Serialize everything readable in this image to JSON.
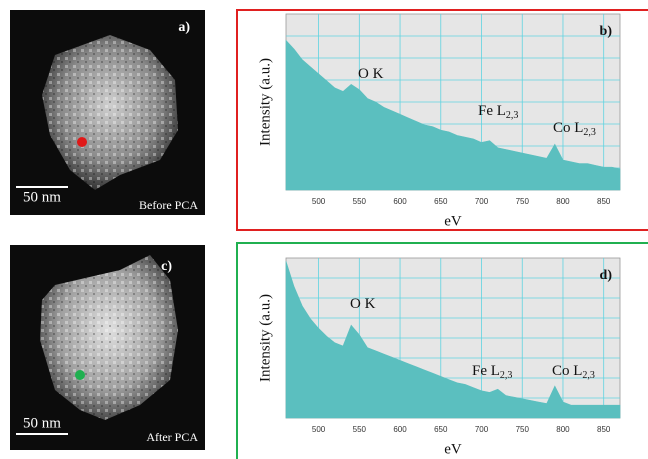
{
  "chart_data": [
    {
      "type": "area",
      "label": "b)",
      "xlabel": "eV",
      "ylabel": "Intensity (a.u.)",
      "color": "#5bbfbf",
      "frame_color": "#e02020",
      "annotations": [
        {
          "text": "O K"
        },
        {
          "text": "Fe L",
          "sub": "2,3"
        },
        {
          "text": "Co L",
          "sub": "2,3"
        }
      ],
      "x": [
        460,
        470,
        480,
        490,
        500,
        510,
        520,
        530,
        540,
        550,
        560,
        570,
        580,
        590,
        600,
        610,
        620,
        630,
        640,
        650,
        660,
        670,
        680,
        690,
        700,
        710,
        720,
        730,
        740,
        750,
        760,
        770,
        780,
        790,
        800,
        810,
        820,
        830,
        840,
        850,
        860,
        870
      ],
      "values": [
        85,
        80,
        74,
        70,
        66,
        62,
        58,
        56,
        60,
        57,
        52,
        50,
        47,
        45,
        43,
        41,
        39,
        37,
        36,
        34,
        33,
        31,
        30,
        29,
        27,
        28,
        24,
        23,
        22,
        21,
        20,
        19,
        18,
        26,
        17,
        16,
        15,
        15,
        14,
        13,
        13,
        12
      ],
      "xlim": [
        460,
        870
      ],
      "ylim": [
        0,
        100
      ],
      "xticks": [
        500,
        550,
        600,
        650,
        700,
        750,
        800,
        850
      ],
      "grid": true
    },
    {
      "type": "area",
      "label": "d)",
      "xlabel": "eV",
      "ylabel": "Intensity (a.u.)",
      "color": "#5bbfbf",
      "frame_color": "#20b050",
      "annotations": [
        {
          "text": "O K"
        },
        {
          "text": "Fe L",
          "sub": "2,3"
        },
        {
          "text": "Co L",
          "sub": "2,3"
        }
      ],
      "x": [
        460,
        470,
        480,
        490,
        500,
        510,
        520,
        530,
        540,
        550,
        560,
        570,
        580,
        590,
        600,
        610,
        620,
        630,
        640,
        650,
        660,
        670,
        680,
        690,
        700,
        710,
        720,
        730,
        740,
        750,
        760,
        770,
        780,
        790,
        800,
        810,
        820,
        830,
        840,
        850,
        860,
        870
      ],
      "values": [
        98,
        82,
        70,
        62,
        56,
        51,
        47,
        45,
        58,
        52,
        44,
        42,
        40,
        38,
        36,
        34,
        32,
        30,
        28,
        26,
        24,
        22,
        21,
        19,
        17,
        16,
        18,
        14,
        13,
        12,
        11,
        10,
        9,
        20,
        10,
        8,
        8,
        8,
        8,
        8,
        8,
        8
      ],
      "xlim": [
        460,
        870
      ],
      "ylim": [
        0,
        100
      ],
      "xticks": [
        500,
        550,
        600,
        650,
        700,
        750,
        800,
        850
      ],
      "grid": true
    }
  ],
  "images": [
    {
      "label": "a)",
      "caption": "Before PCA",
      "scale": "50 nm"
    },
    {
      "label": "c)",
      "caption": "After PCA",
      "scale": "50 nm"
    }
  ]
}
